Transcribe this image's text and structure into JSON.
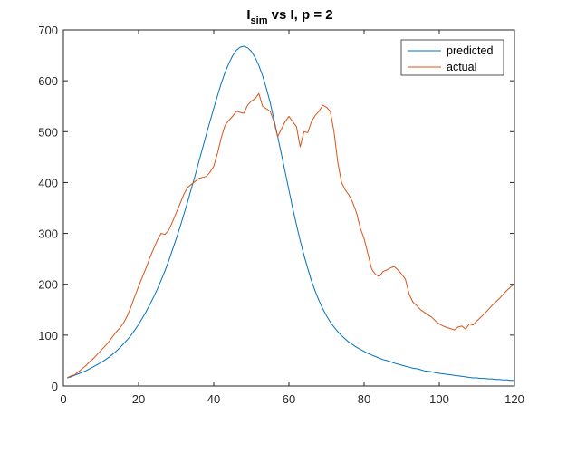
{
  "chart_data": {
    "type": "line",
    "title": {
      "main": "I",
      "sub": "sim",
      "rest": " vs I, p = 2"
    },
    "xlabel": "",
    "ylabel": "",
    "xlim": [
      0,
      120
    ],
    "ylim": [
      0,
      700
    ],
    "xticks": [
      0,
      20,
      40,
      60,
      80,
      100,
      120
    ],
    "yticks": [
      0,
      100,
      200,
      300,
      400,
      500,
      600,
      700
    ],
    "grid": false,
    "legend_position": "top-right",
    "series": [
      {
        "name": "predicted",
        "color": "#0072BD",
        "x": [
          1,
          2,
          3,
          4,
          5,
          6,
          7,
          8,
          9,
          10,
          11,
          12,
          13,
          14,
          15,
          16,
          17,
          18,
          19,
          20,
          21,
          22,
          23,
          24,
          25,
          26,
          27,
          28,
          29,
          30,
          31,
          32,
          33,
          34,
          35,
          36,
          37,
          38,
          39,
          40,
          41,
          42,
          43,
          44,
          45,
          46,
          47,
          48,
          49,
          50,
          51,
          52,
          53,
          54,
          55,
          56,
          57,
          58,
          59,
          60,
          61,
          62,
          63,
          64,
          65,
          66,
          67,
          68,
          69,
          70,
          71,
          72,
          73,
          74,
          75,
          76,
          77,
          78,
          79,
          80,
          81,
          82,
          83,
          84,
          85,
          86,
          87,
          88,
          89,
          90,
          91,
          92,
          93,
          94,
          95,
          96,
          97,
          98,
          99,
          100,
          101,
          102,
          103,
          104,
          105,
          106,
          107,
          108,
          109,
          110,
          111,
          112,
          113,
          114,
          115,
          116,
          117,
          118,
          119,
          120
        ],
        "y": [
          16,
          18,
          21,
          24,
          27,
          30,
          34,
          38,
          42,
          46,
          51,
          56,
          62,
          68,
          75,
          83,
          91,
          100,
          110,
          121,
          133,
          146,
          160,
          175,
          191,
          208,
          226,
          246,
          267,
          289,
          312,
          336,
          361,
          387,
          413,
          440,
          467,
          494,
          520,
          546,
          571,
          595,
          616,
          634,
          649,
          660,
          666,
          668,
          665,
          658,
          646,
          630,
          610,
          585,
          557,
          525,
          491,
          456,
          420,
          385,
          350,
          317,
          286,
          257,
          231,
          207,
          186,
          168,
          152,
          138,
          126,
          116,
          107,
          99,
          92,
          86,
          81,
          76,
          72,
          68,
          64,
          61,
          58,
          55,
          52,
          50,
          48,
          45,
          43,
          41,
          39,
          37,
          35,
          34,
          32,
          30,
          29,
          28,
          26,
          25,
          24,
          23,
          22,
          21,
          20,
          19,
          18,
          17,
          16,
          16,
          15,
          15,
          14,
          14,
          13,
          13,
          12,
          12,
          11,
          11
        ]
      },
      {
        "name": "actual",
        "color": "#D95319",
        "x": [
          1,
          2,
          3,
          4,
          5,
          6,
          7,
          8,
          9,
          10,
          11,
          12,
          13,
          14,
          15,
          16,
          17,
          18,
          19,
          20,
          21,
          22,
          23,
          24,
          25,
          26,
          27,
          28,
          29,
          30,
          31,
          32,
          33,
          34,
          35,
          36,
          37,
          38,
          39,
          40,
          41,
          42,
          43,
          44,
          45,
          46,
          47,
          48,
          49,
          50,
          51,
          52,
          53,
          54,
          55,
          56,
          57,
          58,
          59,
          60,
          61,
          62,
          63,
          64,
          65,
          66,
          67,
          68,
          69,
          70,
          71,
          72,
          73,
          74,
          75,
          76,
          77,
          78,
          79,
          80,
          81,
          82,
          83,
          84,
          85,
          86,
          87,
          88,
          89,
          90,
          91,
          92,
          93,
          94,
          95,
          96,
          97,
          98,
          99,
          100,
          101,
          102,
          103,
          104,
          105,
          106,
          107,
          108,
          109,
          110,
          111,
          112,
          113,
          114,
          115,
          116,
          117,
          118,
          119,
          120
        ],
        "y": [
          16,
          20,
          22,
          28,
          34,
          40,
          48,
          54,
          62,
          70,
          78,
          86,
          96,
          106,
          114,
          124,
          138,
          156,
          176,
          196,
          214,
          232,
          252,
          270,
          287,
          300,
          298,
          306,
          322,
          340,
          358,
          376,
          390,
          396,
          402,
          408,
          410,
          412,
          420,
          432,
          458,
          488,
          512,
          522,
          530,
          540,
          538,
          536,
          552,
          560,
          565,
          575,
          550,
          545,
          540,
          520,
          490,
          505,
          520,
          530,
          520,
          510,
          470,
          500,
          498,
          520,
          532,
          540,
          552,
          548,
          540,
          500,
          440,
          400,
          385,
          375,
          360,
          340,
          310,
          290,
          260,
          230,
          220,
          215,
          225,
          228,
          232,
          235,
          228,
          220,
          210,
          180,
          165,
          158,
          150,
          145,
          140,
          135,
          128,
          122,
          118,
          115,
          113,
          110,
          116,
          118,
          112,
          122,
          120,
          128,
          135,
          142,
          150,
          158,
          165,
          172,
          180,
          188,
          195,
          200
        ]
      }
    ]
  }
}
